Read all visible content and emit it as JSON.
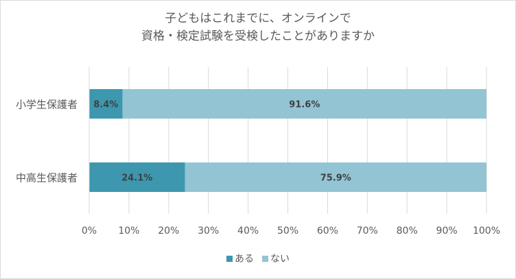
{
  "chart_data": {
    "type": "bar",
    "orientation": "horizontal",
    "stacked": true,
    "title_lines": [
      "子どもはこれまでに、オンラインで",
      "資格・検定試験を受検したことがありますか"
    ],
    "categories": [
      "小学生保護者",
      "中高生保護者"
    ],
    "series": [
      {
        "name": "ある",
        "values": [
          8.4,
          24.1
        ],
        "labels": [
          "8.4%",
          "24.1%"
        ],
        "color": "#3d97ae"
      },
      {
        "name": "ない",
        "values": [
          91.6,
          75.9
        ],
        "labels": [
          "91.6%",
          "75.9%"
        ],
        "color": "#93c4d4"
      }
    ],
    "xlim": [
      0,
      100
    ],
    "xticks": [
      "0%",
      "10%",
      "20%",
      "30%",
      "40%",
      "50%",
      "60%",
      "70%",
      "80%",
      "90%",
      "100%"
    ],
    "grid": true,
    "legend_position": "bottom"
  }
}
